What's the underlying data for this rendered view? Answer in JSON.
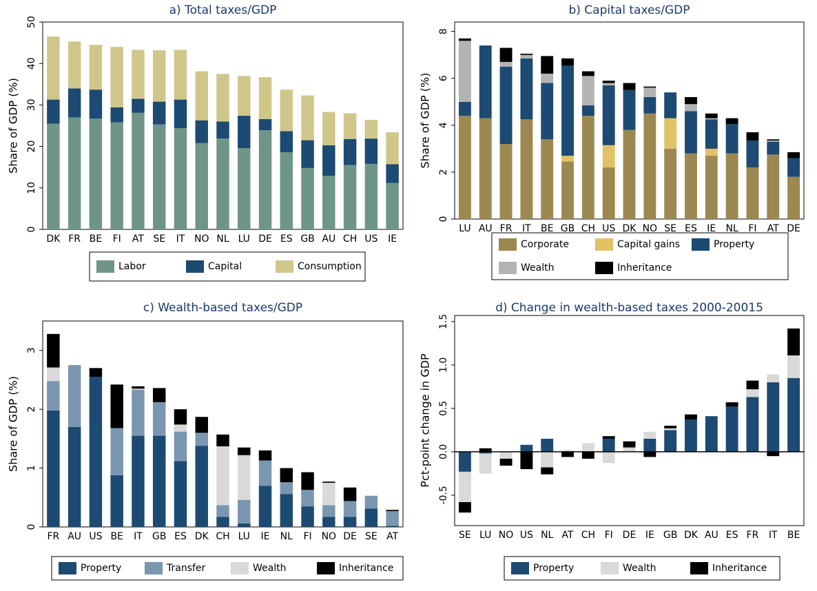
{
  "chart_data": [
    {
      "type": "bar",
      "stacked": true,
      "title": "a) Total taxes/GDP",
      "y_label": "Share of GDP (%)",
      "categories": [
        "DK",
        "FR",
        "BE",
        "FI",
        "AT",
        "SE",
        "IT",
        "NO",
        "NL",
        "LU",
        "DE",
        "ES",
        "GB",
        "AU",
        "CH",
        "US",
        "IE"
      ],
      "series": [
        {
          "name": "Labor",
          "color": "#6e9587",
          "values": [
            25.5,
            27,
            26.7,
            25.8,
            28.1,
            25.3,
            24.4,
            20.8,
            21.9,
            19.6,
            23.9,
            18.6,
            14.8,
            12.9,
            15.5,
            15.8,
            11.2
          ]
        },
        {
          "name": "Capital",
          "color": "#1c4a72",
          "values": [
            5.8,
            7,
            7,
            3.6,
            3.4,
            5.5,
            6.9,
            5.5,
            4.1,
            7.8,
            2.7,
            5.1,
            6.7,
            7.4,
            6.3,
            6.1,
            4.5
          ]
        },
        {
          "name": "Consumption",
          "color": "#cfc78a",
          "values": [
            15.2,
            11.3,
            10.8,
            14.6,
            11.8,
            12.4,
            12,
            11.8,
            11.5,
            9.6,
            10.1,
            10,
            10.8,
            8,
            6.2,
            4.5,
            7.7
          ]
        }
      ],
      "ylim": [
        0,
        50
      ],
      "yticks": [
        0,
        10,
        20,
        30,
        40,
        50
      ]
    },
    {
      "type": "bar",
      "stacked": true,
      "title": "b) Capital taxes/GDP",
      "y_label": "Share of GDP (%)",
      "categories": [
        "LU",
        "AU",
        "FR",
        "IT",
        "BE",
        "GB",
        "CH",
        "US",
        "DK",
        "NO",
        "SE",
        "ES",
        "IE",
        "NL",
        "FI",
        "AT",
        "DE"
      ],
      "series": [
        {
          "name": "Corporate",
          "color": "#9c8851",
          "values": [
            4.4,
            4.3,
            3.2,
            4.25,
            3.4,
            2.45,
            4.4,
            2.2,
            3.8,
            4.5,
            3.0,
            2.8,
            2.7,
            2.8,
            2.2,
            2.75,
            1.8
          ]
        },
        {
          "name": "Capital gains",
          "color": "#e2c266",
          "values": [
            0,
            0,
            0,
            0,
            0,
            0.25,
            0,
            0.95,
            0,
            0,
            1.3,
            0,
            0.3,
            0,
            0,
            0,
            0
          ]
        },
        {
          "name": "Property",
          "color": "#1c4a72",
          "values": [
            0.6,
            3.1,
            3.3,
            2.6,
            2.4,
            3.85,
            0.45,
            2.55,
            1.7,
            0.7,
            1.1,
            1.8,
            1.25,
            1.25,
            1.15,
            0.55,
            0.8
          ]
        },
        {
          "name": "Wealth",
          "color": "#b3b3b3",
          "values": [
            2.6,
            0,
            0.2,
            0.15,
            0.4,
            0,
            1.25,
            0.1,
            0,
            0.4,
            0,
            0.3,
            0.05,
            0,
            0,
            0.05,
            0
          ]
        },
        {
          "name": "Inheritance",
          "color": "#000000",
          "values": [
            0.1,
            0,
            0.6,
            0.05,
            0.75,
            0.3,
            0.2,
            0.1,
            0.3,
            0.05,
            0,
            0.3,
            0.2,
            0.25,
            0.35,
            0.05,
            0.25
          ]
        }
      ],
      "ylim": [
        0,
        8.4
      ],
      "yticks": [
        0,
        2,
        4,
        6,
        8
      ]
    },
    {
      "type": "bar",
      "stacked": true,
      "title": "c) Wealth-based taxes/GDP",
      "y_label": "Share of GDP (%)",
      "categories": [
        "FR",
        "AU",
        "US",
        "BE",
        "IT",
        "GB",
        "ES",
        "DK",
        "CH",
        "LU",
        "IE",
        "NL",
        "FI",
        "NO",
        "DE",
        "SE",
        "AT"
      ],
      "series": [
        {
          "name": "Property",
          "color": "#1c4a72",
          "values": [
            1.98,
            1.7,
            2.55,
            0.88,
            1.55,
            1.55,
            1.12,
            1.38,
            0.17,
            0.06,
            0.7,
            0.56,
            0.35,
            0.17,
            0.17,
            0.31,
            0.02
          ]
        },
        {
          "name": "Transfer",
          "color": "#7a96b0",
          "values": [
            0.5,
            1.05,
            0,
            0.8,
            0.78,
            0.57,
            0.5,
            0.22,
            0.2,
            0.4,
            0.43,
            0.2,
            0.28,
            0.2,
            0.27,
            0.22,
            0.25
          ]
        },
        {
          "name": "Wealth",
          "color": "#d9d9d9",
          "values": [
            0.23,
            0,
            0,
            0,
            0.02,
            0,
            0.12,
            0,
            1.0,
            0.76,
            0,
            0,
            0,
            0.38,
            0,
            0,
            0
          ]
        },
        {
          "name": "Inheritance",
          "color": "#000000",
          "values": [
            0.57,
            0,
            0.15,
            0.74,
            0.04,
            0.24,
            0.26,
            0.27,
            0.2,
            0.13,
            0.17,
            0.24,
            0.3,
            0.02,
            0.23,
            0,
            0.02
          ]
        }
      ],
      "ylim": [
        0,
        3.5
      ],
      "yticks": [
        0,
        1,
        2,
        3
      ]
    },
    {
      "type": "bar",
      "stacked": true,
      "title": "d) Change in wealth-based taxes 2000-20015",
      "y_label": "Pct-point change in GDP",
      "categories": [
        "SE",
        "LU",
        "NO",
        "US",
        "NL",
        "AT",
        "CH",
        "FI",
        "DE",
        "IE",
        "GB",
        "DK",
        "AU",
        "ES",
        "FR",
        "IT",
        "BE"
      ],
      "series": [
        {
          "name": "Property",
          "color": "#1c4a72",
          "values": [
            -0.23,
            -0.02,
            0,
            0.08,
            0.15,
            0,
            0,
            0.15,
            0,
            0.15,
            0.25,
            0.37,
            0.41,
            0.52,
            0.63,
            0.8,
            0.85
          ]
        },
        {
          "name": "Wealth",
          "color": "#d9d9d9",
          "values": [
            -0.35,
            -0.23,
            -0.08,
            0,
            -0.18,
            0.02,
            0.1,
            -0.13,
            0.05,
            0.08,
            0.02,
            0,
            0,
            0,
            0.09,
            0.09,
            0.26
          ]
        },
        {
          "name": "Inheritance",
          "color": "#000000",
          "values": [
            -0.12,
            0.04,
            -0.08,
            -0.2,
            -0.08,
            -0.06,
            -0.08,
            0.03,
            0.07,
            -0.06,
            0.03,
            0.06,
            0,
            0.05,
            0.1,
            -0.05,
            0.31
          ]
        }
      ],
      "ylim": [
        -0.85,
        1.57
      ],
      "yticks": [
        -0.5,
        {
          "value": 0,
          "label": "0.0"
        },
        0.5,
        {
          "value": 1,
          "label": "1.0"
        },
        1.5
      ],
      "zero_line": true
    }
  ]
}
